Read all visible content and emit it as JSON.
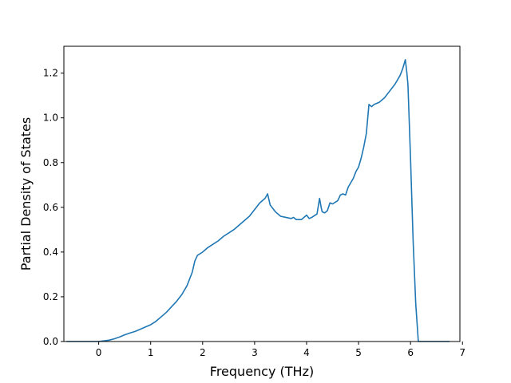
{
  "chart_data": {
    "type": "line",
    "title": "",
    "xlabel": "Frequency (THz)",
    "ylabel": "Partial Density of States",
    "xlim": [
      -0.67,
      6.95
    ],
    "ylim": [
      0.0,
      1.32
    ],
    "xticks": [
      0,
      1,
      2,
      3,
      4,
      5,
      6,
      7
    ],
    "yticks": [
      0.0,
      0.2,
      0.4,
      0.6,
      0.8,
      1.0,
      1.2
    ],
    "ytick_labels": [
      "0.0",
      "0.2",
      "0.4",
      "0.6",
      "0.8",
      "1.0",
      "1.2"
    ],
    "grid": false,
    "legend": "none",
    "series": [
      {
        "color": "#1f77b4",
        "x": [
          -0.62,
          -0.3,
          0.0,
          0.1,
          0.2,
          0.3,
          0.4,
          0.5,
          0.6,
          0.7,
          0.8,
          0.9,
          1.0,
          1.1,
          1.2,
          1.3,
          1.4,
          1.5,
          1.6,
          1.7,
          1.8,
          1.85,
          1.9,
          2.0,
          2.1,
          2.2,
          2.3,
          2.4,
          2.5,
          2.6,
          2.7,
          2.8,
          2.9,
          3.0,
          3.1,
          3.2,
          3.25,
          3.3,
          3.4,
          3.5,
          3.6,
          3.7,
          3.75,
          3.8,
          3.9,
          4.0,
          4.05,
          4.1,
          4.2,
          4.25,
          4.28,
          4.3,
          4.35,
          4.4,
          4.45,
          4.5,
          4.6,
          4.65,
          4.7,
          4.75,
          4.8,
          4.9,
          4.95,
          5.0,
          5.05,
          5.1,
          5.15,
          5.2,
          5.25,
          5.3,
          5.35,
          5.4,
          5.5,
          5.6,
          5.7,
          5.75,
          5.8,
          5.85,
          5.9,
          5.93,
          5.95,
          6.0,
          6.05,
          6.1,
          6.15,
          6.2,
          6.75
        ],
        "y": [
          0.0,
          0.0,
          0.0,
          0.003,
          0.006,
          0.012,
          0.02,
          0.03,
          0.038,
          0.045,
          0.055,
          0.065,
          0.075,
          0.09,
          0.11,
          0.13,
          0.155,
          0.18,
          0.21,
          0.25,
          0.31,
          0.36,
          0.385,
          0.4,
          0.42,
          0.435,
          0.45,
          0.47,
          0.485,
          0.5,
          0.52,
          0.54,
          0.56,
          0.59,
          0.62,
          0.64,
          0.66,
          0.61,
          0.58,
          0.56,
          0.555,
          0.55,
          0.555,
          0.545,
          0.545,
          0.565,
          0.55,
          0.555,
          0.57,
          0.64,
          0.6,
          0.58,
          0.575,
          0.585,
          0.62,
          0.615,
          0.63,
          0.655,
          0.66,
          0.655,
          0.69,
          0.73,
          0.76,
          0.78,
          0.82,
          0.87,
          0.93,
          1.06,
          1.05,
          1.06,
          1.065,
          1.07,
          1.09,
          1.12,
          1.15,
          1.17,
          1.19,
          1.22,
          1.26,
          1.2,
          1.15,
          0.82,
          0.45,
          0.17,
          0.0,
          0.0,
          0.0
        ]
      }
    ]
  }
}
